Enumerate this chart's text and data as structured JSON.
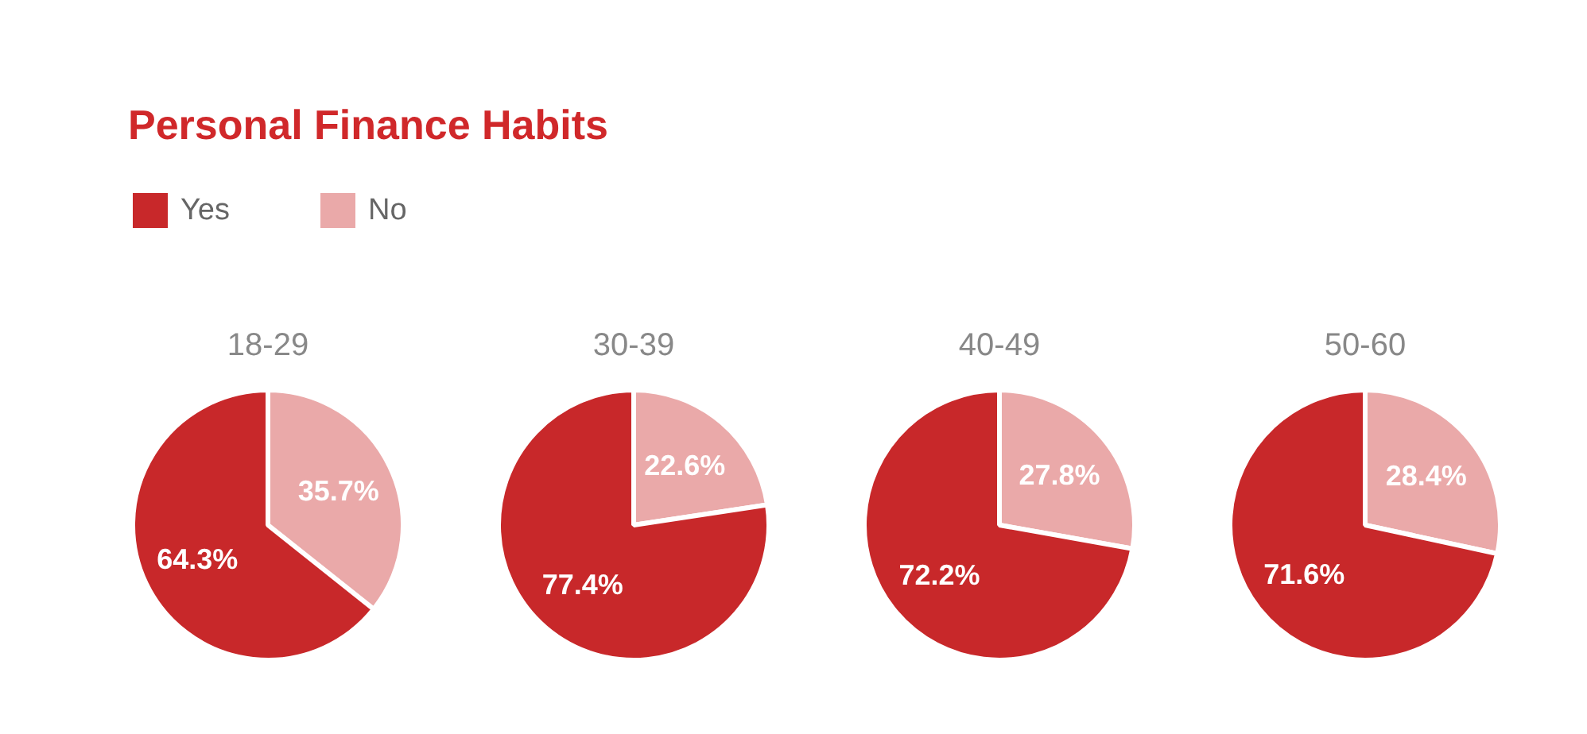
{
  "chart_data": [
    {
      "type": "other",
      "title": "Personal Finance Habits"
    },
    {
      "type": "pie",
      "title": "18-29",
      "categories": [
        "Yes",
        "No"
      ],
      "values": [
        64.3,
        35.7
      ],
      "value_labels": [
        "64.3%",
        "35.7%"
      ],
      "colors": [
        "#c8282a",
        "#eaa9a9"
      ],
      "legend": "top left"
    },
    {
      "type": "pie",
      "title": "30-39",
      "categories": [
        null,
        null
      ],
      "values": [
        77.4,
        22.6
      ],
      "value_labels": [
        "77.4%",
        "22.6%"
      ],
      "colors": [
        "#c8282a",
        "#eaa9a9"
      ]
    },
    {
      "type": "pie",
      "title": "40-49",
      "categories": [
        null,
        null
      ],
      "values": [
        72.2,
        27.8
      ],
      "value_labels": [
        "72.2%",
        "27.8%"
      ],
      "colors": [
        "#c8282a",
        "#eaa9a9"
      ]
    },
    {
      "type": "pie",
      "title": "50-60",
      "categories": [
        null,
        null
      ],
      "values": [
        71.6,
        28.4
      ],
      "value_labels": [
        "71.6%",
        "28.4%"
      ],
      "colors": [
        "#c8282a",
        "#eaa9a9"
      ]
    }
  ]
}
